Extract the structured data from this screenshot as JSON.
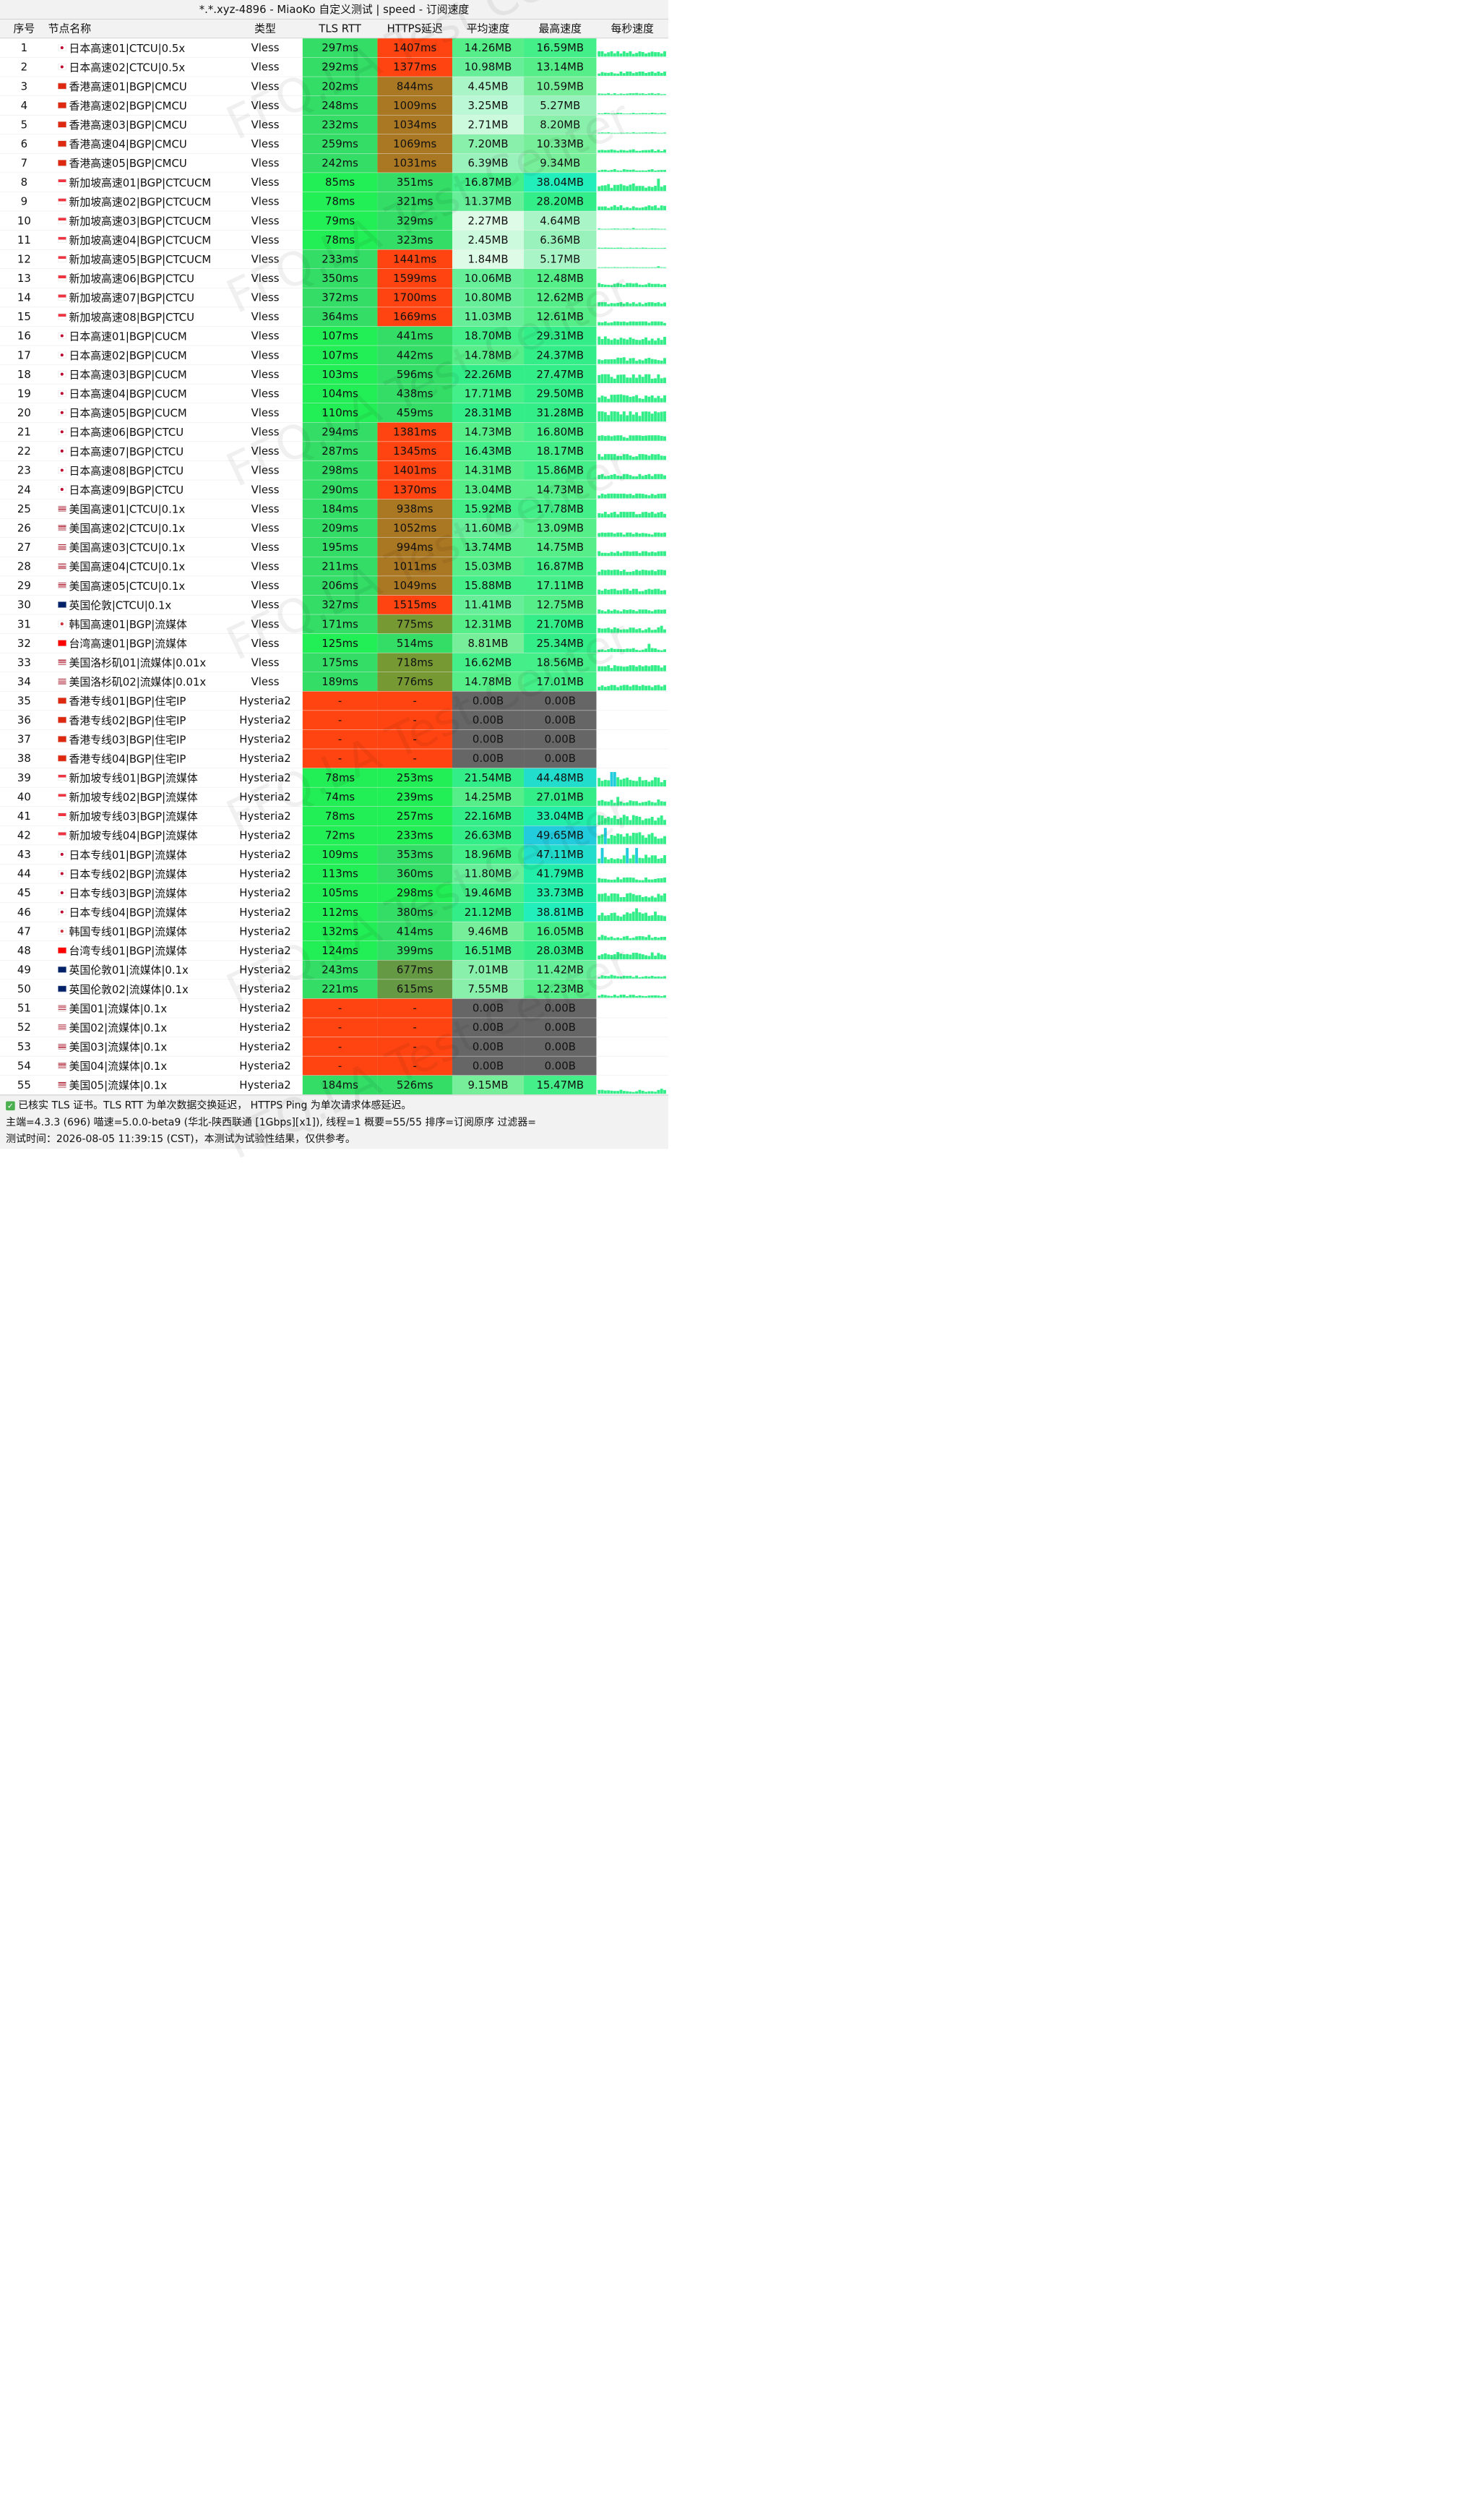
{
  "title": "*.*.xyz-4896 - MiaoKo 自定义测试 | speed - 订阅速度",
  "columns": [
    "序号",
    "节点名称",
    "类型",
    "TLS RTT",
    "HTTPS延迟",
    "平均速度",
    "最高速度",
    "每秒速度"
  ],
  "watermark": "FFQ.LA Test Center",
  "rows": [
    {
      "idx": "1",
      "flag": "jp",
      "name": "日本高速01|CTCU|0.5x",
      "type": "Vless",
      "tls": "297ms",
      "https": "1407ms",
      "avg": "14.26MB",
      "max": "16.59MB",
      "tls_c": "#33dd66",
      "https_c": "#ff4411",
      "avg_c": "#55ee88",
      "max_c": "#44ee88"
    },
    {
      "idx": "2",
      "flag": "jp",
      "name": "日本高速02|CTCU|0.5x",
      "type": "Vless",
      "tls": "292ms",
      "https": "1377ms",
      "avg": "10.98MB",
      "max": "13.14MB",
      "tls_c": "#33dd66",
      "https_c": "#ff4411",
      "avg_c": "#66ee99",
      "max_c": "#55ee88"
    },
    {
      "idx": "3",
      "flag": "hk",
      "name": "香港高速01|BGP|CMCU",
      "type": "Vless",
      "tls": "202ms",
      "https": "844ms",
      "avg": "4.45MB",
      "max": "10.59MB",
      "tls_c": "#33dd66",
      "https_c": "#aa7722",
      "avg_c": "#aaf5c8",
      "max_c": "#77ee99"
    },
    {
      "idx": "4",
      "flag": "hk",
      "name": "香港高速02|BGP|CMCU",
      "type": "Vless",
      "tls": "248ms",
      "https": "1009ms",
      "avg": "3.25MB",
      "max": "5.27MB",
      "tls_c": "#33dd66",
      "https_c": "#aa7722",
      "avg_c": "#bbf8d5",
      "max_c": "#99f2bb"
    },
    {
      "idx": "5",
      "flag": "hk",
      "name": "香港高速03|BGP|CMCU",
      "type": "Vless",
      "tls": "232ms",
      "https": "1034ms",
      "avg": "2.71MB",
      "max": "8.20MB",
      "tls_c": "#33dd66",
      "https_c": "#aa7722",
      "avg_c": "#ccfadd",
      "max_c": "#88f0aa"
    },
    {
      "idx": "6",
      "flag": "hk",
      "name": "香港高速04|BGP|CMCU",
      "type": "Vless",
      "tls": "259ms",
      "https": "1069ms",
      "avg": "7.20MB",
      "max": "10.33MB",
      "tls_c": "#33dd66",
      "https_c": "#aa7722",
      "avg_c": "#88f0aa",
      "max_c": "#77ee99"
    },
    {
      "idx": "7",
      "flag": "hk",
      "name": "香港高速05|BGP|CMCU",
      "type": "Vless",
      "tls": "242ms",
      "https": "1031ms",
      "avg": "6.39MB",
      "max": "9.34MB",
      "tls_c": "#33dd66",
      "https_c": "#aa7722",
      "avg_c": "#99f2bb",
      "max_c": "#77ee99"
    },
    {
      "idx": "8",
      "flag": "sg",
      "name": "新加坡高速01|BGP|CTCUCM",
      "type": "Vless",
      "tls": "85ms",
      "https": "351ms",
      "avg": "16.87MB",
      "max": "38.04MB",
      "tls_c": "#22ee55",
      "https_c": "#33dd66",
      "avg_c": "#44ee88",
      "max_c": "#22eebb"
    },
    {
      "idx": "9",
      "flag": "sg",
      "name": "新加坡高速02|BGP|CTCUCM",
      "type": "Vless",
      "tls": "78ms",
      "https": "321ms",
      "avg": "11.37MB",
      "max": "28.20MB",
      "tls_c": "#22ee55",
      "https_c": "#33dd66",
      "avg_c": "#66ee99",
      "max_c": "#33ee88"
    },
    {
      "idx": "10",
      "flag": "sg",
      "name": "新加坡高速03|BGP|CTCUCM",
      "type": "Vless",
      "tls": "79ms",
      "https": "329ms",
      "avg": "2.27MB",
      "max": "4.64MB",
      "tls_c": "#22ee55",
      "https_c": "#33dd66",
      "avg_c": "#ddfbe6",
      "max_c": "#aaf5c8"
    },
    {
      "idx": "11",
      "flag": "sg",
      "name": "新加坡高速04|BGP|CTCUCM",
      "type": "Vless",
      "tls": "78ms",
      "https": "323ms",
      "avg": "2.45MB",
      "max": "6.36MB",
      "tls_c": "#22ee55",
      "https_c": "#33dd66",
      "avg_c": "#ccfadd",
      "max_c": "#99f2bb"
    },
    {
      "idx": "12",
      "flag": "sg",
      "name": "新加坡高速05|BGP|CTCUCM",
      "type": "Vless",
      "tls": "233ms",
      "https": "1441ms",
      "avg": "1.84MB",
      "max": "5.17MB",
      "tls_c": "#33dd66",
      "https_c": "#ff4411",
      "avg_c": "#ddfbe6",
      "max_c": "#aaf5c8"
    },
    {
      "idx": "13",
      "flag": "sg",
      "name": "新加坡高速06|BGP|CTCU",
      "type": "Vless",
      "tls": "350ms",
      "https": "1599ms",
      "avg": "10.06MB",
      "max": "12.48MB",
      "tls_c": "#33dd66",
      "https_c": "#ff4411",
      "avg_c": "#66ee99",
      "max_c": "#55ee88"
    },
    {
      "idx": "14",
      "flag": "sg",
      "name": "新加坡高速07|BGP|CTCU",
      "type": "Vless",
      "tls": "372ms",
      "https": "1700ms",
      "avg": "10.80MB",
      "max": "12.62MB",
      "tls_c": "#33dd66",
      "https_c": "#ff4411",
      "avg_c": "#66ee99",
      "max_c": "#55ee88"
    },
    {
      "idx": "15",
      "flag": "sg",
      "name": "新加坡高速08|BGP|CTCU",
      "type": "Vless",
      "tls": "364ms",
      "https": "1669ms",
      "avg": "11.03MB",
      "max": "12.61MB",
      "tls_c": "#33dd66",
      "https_c": "#ff4411",
      "avg_c": "#66ee99",
      "max_c": "#55ee88"
    },
    {
      "idx": "16",
      "flag": "jp",
      "name": "日本高速01|BGP|CUCM",
      "type": "Vless",
      "tls": "107ms",
      "https": "441ms",
      "avg": "18.70MB",
      "max": "29.31MB",
      "tls_c": "#22ee55",
      "https_c": "#33dd66",
      "avg_c": "#44ee88",
      "max_c": "#33ee88"
    },
    {
      "idx": "17",
      "flag": "jp",
      "name": "日本高速02|BGP|CUCM",
      "type": "Vless",
      "tls": "107ms",
      "https": "442ms",
      "avg": "14.78MB",
      "max": "24.37MB",
      "tls_c": "#22ee55",
      "https_c": "#33dd66",
      "avg_c": "#55ee88",
      "max_c": "#33ee88"
    },
    {
      "idx": "18",
      "flag": "jp",
      "name": "日本高速03|BGP|CUCM",
      "type": "Vless",
      "tls": "103ms",
      "https": "596ms",
      "avg": "22.26MB",
      "max": "27.47MB",
      "tls_c": "#22ee55",
      "https_c": "#33dd66",
      "avg_c": "#33ee88",
      "max_c": "#33ee88"
    },
    {
      "idx": "19",
      "flag": "jp",
      "name": "日本高速04|BGP|CUCM",
      "type": "Vless",
      "tls": "104ms",
      "https": "438ms",
      "avg": "17.71MB",
      "max": "29.50MB",
      "tls_c": "#22ee55",
      "https_c": "#33dd66",
      "avg_c": "#44ee88",
      "max_c": "#33ee88"
    },
    {
      "idx": "20",
      "flag": "jp",
      "name": "日本高速05|BGP|CUCM",
      "type": "Vless",
      "tls": "110ms",
      "https": "459ms",
      "avg": "28.31MB",
      "max": "31.28MB",
      "tls_c": "#22ee55",
      "https_c": "#33dd66",
      "avg_c": "#33ee88",
      "max_c": "#33ee88"
    },
    {
      "idx": "21",
      "flag": "jp",
      "name": "日本高速06|BGP|CTCU",
      "type": "Vless",
      "tls": "294ms",
      "https": "1381ms",
      "avg": "14.73MB",
      "max": "16.80MB",
      "tls_c": "#33dd66",
      "https_c": "#ff4411",
      "avg_c": "#55ee88",
      "max_c": "#44ee88"
    },
    {
      "idx": "22",
      "flag": "jp",
      "name": "日本高速07|BGP|CTCU",
      "type": "Vless",
      "tls": "287ms",
      "https": "1345ms",
      "avg": "16.43MB",
      "max": "18.17MB",
      "tls_c": "#33dd66",
      "https_c": "#ff4411",
      "avg_c": "#44ee88",
      "max_c": "#44ee88"
    },
    {
      "idx": "23",
      "flag": "jp",
      "name": "日本高速08|BGP|CTCU",
      "type": "Vless",
      "tls": "298ms",
      "https": "1401ms",
      "avg": "14.31MB",
      "max": "15.86MB",
      "tls_c": "#33dd66",
      "https_c": "#ff4411",
      "avg_c": "#55ee88",
      "max_c": "#44ee88"
    },
    {
      "idx": "24",
      "flag": "jp",
      "name": "日本高速09|BGP|CTCU",
      "type": "Vless",
      "tls": "290ms",
      "https": "1370ms",
      "avg": "13.04MB",
      "max": "14.73MB",
      "tls_c": "#33dd66",
      "https_c": "#ff4411",
      "avg_c": "#55ee88",
      "max_c": "#55ee88"
    },
    {
      "idx": "25",
      "flag": "us",
      "name": "美国高速01|CTCU|0.1x",
      "type": "Vless",
      "tls": "184ms",
      "https": "938ms",
      "avg": "15.92MB",
      "max": "17.78MB",
      "tls_c": "#33dd66",
      "https_c": "#aa7722",
      "avg_c": "#44ee88",
      "max_c": "#44ee88"
    },
    {
      "idx": "26",
      "flag": "us",
      "name": "美国高速02|CTCU|0.1x",
      "type": "Vless",
      "tls": "209ms",
      "https": "1052ms",
      "avg": "11.60MB",
      "max": "13.09MB",
      "tls_c": "#33dd66",
      "https_c": "#aa7722",
      "avg_c": "#66ee99",
      "max_c": "#55ee88"
    },
    {
      "idx": "27",
      "flag": "us",
      "name": "美国高速03|CTCU|0.1x",
      "type": "Vless",
      "tls": "195ms",
      "https": "994ms",
      "avg": "13.74MB",
      "max": "14.75MB",
      "tls_c": "#33dd66",
      "https_c": "#aa7722",
      "avg_c": "#55ee88",
      "max_c": "#55ee88"
    },
    {
      "idx": "28",
      "flag": "us",
      "name": "美国高速04|CTCU|0.1x",
      "type": "Vless",
      "tls": "211ms",
      "https": "1011ms",
      "avg": "15.03MB",
      "max": "16.87MB",
      "tls_c": "#33dd66",
      "https_c": "#aa7722",
      "avg_c": "#55ee88",
      "max_c": "#44ee88"
    },
    {
      "idx": "29",
      "flag": "us",
      "name": "美国高速05|CTCU|0.1x",
      "type": "Vless",
      "tls": "206ms",
      "https": "1049ms",
      "avg": "15.88MB",
      "max": "17.11MB",
      "tls_c": "#33dd66",
      "https_c": "#aa7722",
      "avg_c": "#44ee88",
      "max_c": "#44ee88"
    },
    {
      "idx": "30",
      "flag": "gb",
      "name": "英国伦敦|CTCU|0.1x",
      "type": "Vless",
      "tls": "327ms",
      "https": "1515ms",
      "avg": "11.41MB",
      "max": "12.75MB",
      "tls_c": "#33dd66",
      "https_c": "#ff4411",
      "avg_c": "#66ee99",
      "max_c": "#55ee88"
    },
    {
      "idx": "31",
      "flag": "kr",
      "name": "韩国高速01|BGP|流媒体",
      "type": "Vless",
      "tls": "171ms",
      "https": "775ms",
      "avg": "12.31MB",
      "max": "21.70MB",
      "tls_c": "#33dd66",
      "https_c": "#779933",
      "avg_c": "#55ee88",
      "max_c": "#33ee88"
    },
    {
      "idx": "32",
      "flag": "tw",
      "name": "台湾高速01|BGP|流媒体",
      "type": "Vless",
      "tls": "125ms",
      "https": "514ms",
      "avg": "8.81MB",
      "max": "25.34MB",
      "tls_c": "#22ee55",
      "https_c": "#33dd66",
      "avg_c": "#77ee99",
      "max_c": "#33ee88"
    },
    {
      "idx": "33",
      "flag": "us",
      "name": "美国洛杉矶01|流媒体|0.01x",
      "type": "Vless",
      "tls": "175ms",
      "https": "718ms",
      "avg": "16.62MB",
      "max": "18.56MB",
      "tls_c": "#33dd66",
      "https_c": "#779933",
      "avg_c": "#44ee88",
      "max_c": "#44ee88"
    },
    {
      "idx": "34",
      "flag": "us",
      "name": "美国洛杉矶02|流媒体|0.01x",
      "type": "Vless",
      "tls": "189ms",
      "https": "776ms",
      "avg": "14.78MB",
      "max": "17.01MB",
      "tls_c": "#33dd66",
      "https_c": "#779933",
      "avg_c": "#55ee88",
      "max_c": "#44ee88"
    },
    {
      "idx": "35",
      "flag": "hk",
      "name": "香港专线01|BGP|住宅IP",
      "type": "Hysteria2",
      "tls": "-",
      "https": "-",
      "avg": "0.00B",
      "max": "0.00B",
      "tls_c": "#ff4411",
      "https_c": "#ff4411",
      "avg_c": "#666666",
      "max_c": "#666666"
    },
    {
      "idx": "36",
      "flag": "hk",
      "name": "香港专线02|BGP|住宅IP",
      "type": "Hysteria2",
      "tls": "-",
      "https": "-",
      "avg": "0.00B",
      "max": "0.00B",
      "tls_c": "#ff4411",
      "https_c": "#ff4411",
      "avg_c": "#666666",
      "max_c": "#666666"
    },
    {
      "idx": "37",
      "flag": "hk",
      "name": "香港专线03|BGP|住宅IP",
      "type": "Hysteria2",
      "tls": "-",
      "https": "-",
      "avg": "0.00B",
      "max": "0.00B",
      "tls_c": "#ff4411",
      "https_c": "#ff4411",
      "avg_c": "#666666",
      "max_c": "#666666"
    },
    {
      "idx": "38",
      "flag": "hk",
      "name": "香港专线04|BGP|住宅IP",
      "type": "Hysteria2",
      "tls": "-",
      "https": "-",
      "avg": "0.00B",
      "max": "0.00B",
      "tls_c": "#ff4411",
      "https_c": "#ff4411",
      "avg_c": "#666666",
      "max_c": "#666666"
    },
    {
      "idx": "39",
      "flag": "sg",
      "name": "新加坡专线01|BGP|流媒体",
      "type": "Hysteria2",
      "tls": "78ms",
      "https": "253ms",
      "avg": "21.54MB",
      "max": "44.48MB",
      "tls_c": "#22ee55",
      "https_c": "#22ee55",
      "avg_c": "#33ee88",
      "max_c": "#22ddcc"
    },
    {
      "idx": "40",
      "flag": "sg",
      "name": "新加坡专线02|BGP|流媒体",
      "type": "Hysteria2",
      "tls": "74ms",
      "https": "239ms",
      "avg": "14.25MB",
      "max": "27.01MB",
      "tls_c": "#22ee55",
      "https_c": "#22ee55",
      "avg_c": "#55ee88",
      "max_c": "#33ee88"
    },
    {
      "idx": "41",
      "flag": "sg",
      "name": "新加坡专线03|BGP|流媒体",
      "type": "Hysteria2",
      "tls": "78ms",
      "https": "257ms",
      "avg": "22.16MB",
      "max": "33.04MB",
      "tls_c": "#22ee55",
      "https_c": "#22ee55",
      "avg_c": "#33ee88",
      "max_c": "#22eeaa"
    },
    {
      "idx": "42",
      "flag": "sg",
      "name": "新加坡专线04|BGP|流媒体",
      "type": "Hysteria2",
      "tls": "72ms",
      "https": "233ms",
      "avg": "26.63MB",
      "max": "49.65MB",
      "tls_c": "#22ee55",
      "https_c": "#22ee55",
      "avg_c": "#33ee88",
      "max_c": "#22ccdd"
    },
    {
      "idx": "43",
      "flag": "jp",
      "name": "日本专线01|BGP|流媒体",
      "type": "Hysteria2",
      "tls": "109ms",
      "https": "353ms",
      "avg": "18.96MB",
      "max": "47.11MB",
      "tls_c": "#22ee55",
      "https_c": "#33dd66",
      "avg_c": "#44ee88",
      "max_c": "#22ddcc"
    },
    {
      "idx": "44",
      "flag": "jp",
      "name": "日本专线02|BGP|流媒体",
      "type": "Hysteria2",
      "tls": "113ms",
      "https": "360ms",
      "avg": "11.80MB",
      "max": "41.79MB",
      "tls_c": "#22ee55",
      "https_c": "#33dd66",
      "avg_c": "#66ee99",
      "max_c": "#22eeaa"
    },
    {
      "idx": "45",
      "flag": "jp",
      "name": "日本专线03|BGP|流媒体",
      "type": "Hysteria2",
      "tls": "105ms",
      "https": "298ms",
      "avg": "19.46MB",
      "max": "33.73MB",
      "tls_c": "#22ee55",
      "https_c": "#22ee55",
      "avg_c": "#44ee88",
      "max_c": "#22eeaa"
    },
    {
      "idx": "46",
      "flag": "jp",
      "name": "日本专线04|BGP|流媒体",
      "type": "Hysteria2",
      "tls": "112ms",
      "https": "380ms",
      "avg": "21.12MB",
      "max": "38.81MB",
      "tls_c": "#22ee55",
      "https_c": "#33dd66",
      "avg_c": "#33ee88",
      "max_c": "#22eebb"
    },
    {
      "idx": "47",
      "flag": "kr",
      "name": "韩国专线01|BGP|流媒体",
      "type": "Hysteria2",
      "tls": "132ms",
      "https": "414ms",
      "avg": "9.46MB",
      "max": "16.05MB",
      "tls_c": "#22ee55",
      "https_c": "#33dd66",
      "avg_c": "#77ee99",
      "max_c": "#44ee88"
    },
    {
      "idx": "48",
      "flag": "tw",
      "name": "台湾专线01|BGP|流媒体",
      "type": "Hysteria2",
      "tls": "124ms",
      "https": "399ms",
      "avg": "16.51MB",
      "max": "28.03MB",
      "tls_c": "#22ee55",
      "https_c": "#33dd66",
      "avg_c": "#44ee88",
      "max_c": "#33ee88"
    },
    {
      "idx": "49",
      "flag": "gb",
      "name": "英国伦敦01|流媒体|0.1x",
      "type": "Hysteria2",
      "tls": "243ms",
      "https": "677ms",
      "avg": "7.01MB",
      "max": "11.42MB",
      "tls_c": "#33dd66",
      "https_c": "#669944",
      "avg_c": "#88f0aa",
      "max_c": "#66ee99"
    },
    {
      "idx": "50",
      "flag": "gb",
      "name": "英国伦敦02|流媒体|0.1x",
      "type": "Hysteria2",
      "tls": "221ms",
      "https": "615ms",
      "avg": "7.55MB",
      "max": "12.23MB",
      "tls_c": "#33dd66",
      "https_c": "#669944",
      "avg_c": "#88f0aa",
      "max_c": "#55ee88"
    },
    {
      "idx": "51",
      "flag": "us",
      "name": "美国01|流媒体|0.1x",
      "type": "Hysteria2",
      "tls": "-",
      "https": "-",
      "avg": "0.00B",
      "max": "0.00B",
      "tls_c": "#ff4411",
      "https_c": "#ff4411",
      "avg_c": "#666666",
      "max_c": "#666666"
    },
    {
      "idx": "52",
      "flag": "us",
      "name": "美国02|流媒体|0.1x",
      "type": "Hysteria2",
      "tls": "-",
      "https": "-",
      "avg": "0.00B",
      "max": "0.00B",
      "tls_c": "#ff4411",
      "https_c": "#ff4411",
      "avg_c": "#666666",
      "max_c": "#666666"
    },
    {
      "idx": "53",
      "flag": "us",
      "name": "美国03|流媒体|0.1x",
      "type": "Hysteria2",
      "tls": "-",
      "https": "-",
      "avg": "0.00B",
      "max": "0.00B",
      "tls_c": "#ff4411",
      "https_c": "#ff4411",
      "avg_c": "#666666",
      "max_c": "#666666"
    },
    {
      "idx": "54",
      "flag": "us",
      "name": "美国04|流媒体|0.1x",
      "type": "Hysteria2",
      "tls": "-",
      "https": "-",
      "avg": "0.00B",
      "max": "0.00B",
      "tls_c": "#ff4411",
      "https_c": "#ff4411",
      "avg_c": "#666666",
      "max_c": "#666666"
    },
    {
      "idx": "55",
      "flag": "us",
      "name": "美国05|流媒体|0.1x",
      "type": "Hysteria2",
      "tls": "184ms",
      "https": "526ms",
      "avg": "9.15MB",
      "max": "15.47MB",
      "tls_c": "#33dd66",
      "https_c": "#33dd66",
      "avg_c": "#77ee99",
      "max_c": "#44ee88"
    }
  ],
  "footer": {
    "line1": "已核实 TLS 证书。TLS RTT 为单次数据交换延迟， HTTPS Ping 为单次请求体感延迟。",
    "line2": "主端=4.3.3 (696) 喵速=5.0.0-beta9 (华北-陕西联通 [1Gbps][x1]), 线程=1 概要=55/55 排序=订阅原序 过滤器=",
    "line3": "测试时间：2026-08-05 11:39:15 (CST)，本测试为试验性结果，仅供参考。"
  },
  "colors": {
    "header_bg": "#f2f2f2",
    "spark_bar": "#33ee88",
    "spark_bar_alt": "#22ccdd"
  }
}
